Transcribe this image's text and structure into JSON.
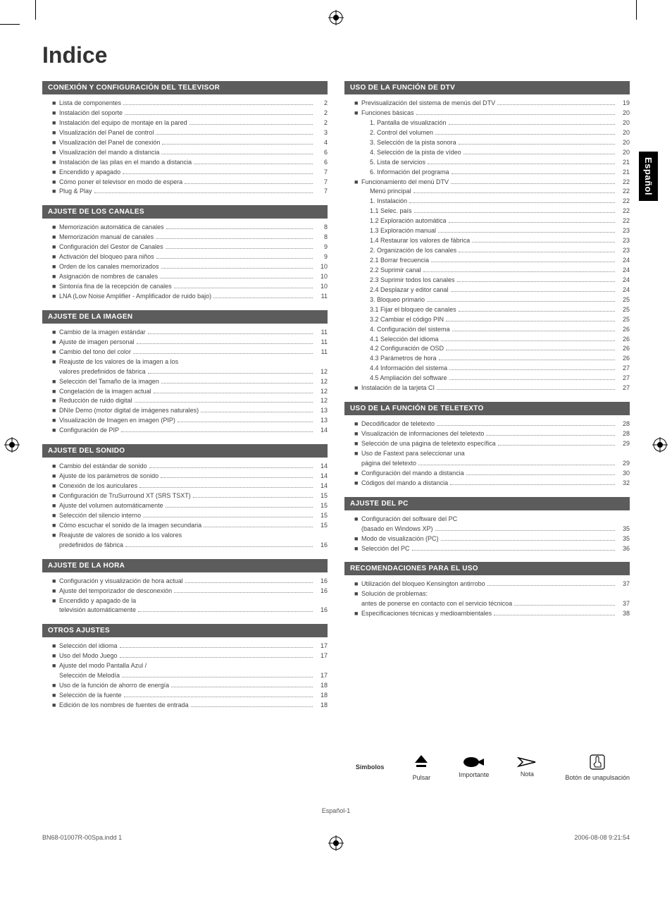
{
  "title": "Indice",
  "side_tab": "Español",
  "colors": {
    "section_header_bg": "#5c5c5c",
    "section_header_fg": "#ffffff",
    "side_tab_bg": "#000000",
    "side_tab_fg": "#ffffff",
    "text": "#333333",
    "dots": "#888888"
  },
  "left_sections": [
    {
      "header": "CONEXIÓN Y CONFIGURACIÓN DEL TELEVISOR",
      "items": [
        {
          "bullet": true,
          "label": "Lista de componentes",
          "page": "2"
        },
        {
          "bullet": true,
          "label": "Instalación del soporte",
          "page": "2"
        },
        {
          "bullet": true,
          "label": "Instalación del equipo de montaje en la pared",
          "page": "2"
        },
        {
          "bullet": true,
          "label": "Visualización del Panel de control",
          "page": "3"
        },
        {
          "bullet": true,
          "label": "Visualización del Panel de conexión",
          "page": "4"
        },
        {
          "bullet": true,
          "label": "Visualización del mando a distancia",
          "page": "6"
        },
        {
          "bullet": true,
          "label": "Instalación de las pilas en el mando a distancia",
          "page": "6"
        },
        {
          "bullet": true,
          "label": "Encendido y apagado",
          "page": "7"
        },
        {
          "bullet": true,
          "label": "Cómo poner el televisor en modo de espera",
          "page": "7"
        },
        {
          "bullet": true,
          "label": "Plug & Play",
          "page": "7"
        }
      ]
    },
    {
      "header": "AJUSTE DE LOS CANALES",
      "items": [
        {
          "bullet": true,
          "label": "Memorización automática de canales",
          "page": "8"
        },
        {
          "bullet": true,
          "label": "Memorización manual de canales",
          "page": "8"
        },
        {
          "bullet": true,
          "label": "Configuración del Gestor de Canales",
          "page": "9"
        },
        {
          "bullet": true,
          "label": "Activación del bloqueo para niños",
          "page": "9"
        },
        {
          "bullet": true,
          "label": "Orden de los canales memorizados",
          "page": "10"
        },
        {
          "bullet": true,
          "label": "Asignación de nombres de canales",
          "page": "10"
        },
        {
          "bullet": true,
          "label": "Sintonía fina de la recepción de canales",
          "page": "10"
        },
        {
          "bullet": true,
          "label": "LNA (Low Noise Amplifier - Amplificador de ruido bajo)",
          "page": "11"
        }
      ]
    },
    {
      "header": "AJUSTE DE LA IMAGEN",
      "items": [
        {
          "bullet": true,
          "label": "Cambio de la imagen estándar",
          "page": "11"
        },
        {
          "bullet": true,
          "label": "Ajuste de imagen personal",
          "page": "11"
        },
        {
          "bullet": true,
          "label": "Cambio del tono del color",
          "page": "11"
        },
        {
          "bullet": true,
          "label": "Reajuste de los valores de la imagen a los",
          "no_page": true
        },
        {
          "bullet": false,
          "label": "valores predefinidos de fábrica",
          "page": "12"
        },
        {
          "bullet": true,
          "label": "Selección del Tamaño de la imagen",
          "page": "12"
        },
        {
          "bullet": true,
          "label": "Congelación de la imagen actual",
          "page": "12"
        },
        {
          "bullet": true,
          "label": "Reducción de ruido digital",
          "page": "12"
        },
        {
          "bullet": true,
          "label": "DNIe Demo (motor digital de imágenes naturales)",
          "page": "13"
        },
        {
          "bullet": true,
          "label": "Visualización de Imagen en imagen (PIP)",
          "page": "13"
        },
        {
          "bullet": true,
          "label": "Configuración de PIP",
          "page": "14"
        }
      ]
    },
    {
      "header": "AJUSTE DEL SONIDO",
      "items": [
        {
          "bullet": true,
          "label": "Cambio del estándar de sonido",
          "page": "14"
        },
        {
          "bullet": true,
          "label": "Ajuste de los parámetros de sonido",
          "page": "14"
        },
        {
          "bullet": true,
          "label": "Conexión de los auriculares",
          "page": "14"
        },
        {
          "bullet": true,
          "label": "Configuración de TruSurround XT (SRS TSXT)",
          "page": "15"
        },
        {
          "bullet": true,
          "label": "Ajuste del volumen automáticamente",
          "page": "15"
        },
        {
          "bullet": true,
          "label": "Selección del silencio interno",
          "page": "15"
        },
        {
          "bullet": true,
          "label": "Cómo escuchar el sonido de la imagen secundaria",
          "page": "15"
        },
        {
          "bullet": true,
          "label": "Reajuste de valores de sonido a los valores",
          "no_page": true
        },
        {
          "bullet": false,
          "label": "predefinidos de fábrica",
          "page": "16"
        }
      ]
    },
    {
      "header": "AJUSTE DE LA HORA",
      "items": [
        {
          "bullet": true,
          "label": "Configuración y visualización de hora actual",
          "page": "16"
        },
        {
          "bullet": true,
          "label": "Ajuste del temporizador de desconexión",
          "page": "16"
        },
        {
          "bullet": true,
          "label": "Encendido y apagado de la",
          "no_page": true
        },
        {
          "bullet": false,
          "label": "televisión automáticamente",
          "page": "16"
        }
      ]
    },
    {
      "header": "OTROS AJUSTES",
      "items": [
        {
          "bullet": true,
          "label": "Selección del idioma",
          "page": "17"
        },
        {
          "bullet": true,
          "label": "Uso del Modo Juego",
          "page": "17"
        },
        {
          "bullet": true,
          "label": "Ajuste del modo Pantalla Azul /",
          "no_page": true
        },
        {
          "bullet": false,
          "label": "Selección de Melodía",
          "page": "17"
        },
        {
          "bullet": true,
          "label": "Uso de la función de ahorro de energía",
          "page": "18"
        },
        {
          "bullet": true,
          "label": "Selección de la fuente",
          "page": "18"
        },
        {
          "bullet": true,
          "label": "Edición de los nombres de fuentes de entrada",
          "page": "18"
        }
      ]
    }
  ],
  "right_sections": [
    {
      "header": "USO DE LA FUNCIÓN DE DTV",
      "items": [
        {
          "bullet": true,
          "label": "Previsualización del sistema de menús del DTV",
          "page": "19"
        },
        {
          "bullet": true,
          "label": "Funciones básicas",
          "page": "20"
        },
        {
          "bullet": false,
          "nested": true,
          "label": "1. Pantalla de visualización",
          "page": "20"
        },
        {
          "bullet": false,
          "nested": true,
          "label": "2. Control del volumen",
          "page": "20"
        },
        {
          "bullet": false,
          "nested": true,
          "label": "3. Selección de la pista sonora",
          "page": "20"
        },
        {
          "bullet": false,
          "nested": true,
          "label": "4. Selección de la pista de vídeo",
          "page": "20"
        },
        {
          "bullet": false,
          "nested": true,
          "label": "5.  Lista de servicios",
          "page": "21"
        },
        {
          "bullet": false,
          "nested": true,
          "label": "6.  Información del programa",
          "page": "21"
        },
        {
          "bullet": true,
          "label": "Funcionamiento del menú DTV",
          "page": "22"
        },
        {
          "bullet": false,
          "nested": true,
          "label": "Menú principal",
          "page": "22"
        },
        {
          "bullet": false,
          "nested": true,
          "label": "1. Instalación",
          "page": "22"
        },
        {
          "bullet": false,
          "nested": true,
          "label": "1.1 Selec. país",
          "page": "22"
        },
        {
          "bullet": false,
          "nested": true,
          "label": "1.2 Exploración automática",
          "page": "22"
        },
        {
          "bullet": false,
          "nested": true,
          "label": "1.3 Exploración manual",
          "page": "23"
        },
        {
          "bullet": false,
          "nested": true,
          "label": "1.4 Restaurar los valores de fábrica",
          "page": "23"
        },
        {
          "bullet": false,
          "nested": true,
          "label": "2. Organización de los canales",
          "page": "23"
        },
        {
          "bullet": false,
          "nested": true,
          "label": "2.1 Borrar frecuencia",
          "page": "24"
        },
        {
          "bullet": false,
          "nested": true,
          "label": "2.2 Suprimir canal",
          "page": "24"
        },
        {
          "bullet": false,
          "nested": true,
          "label": "2.3 Suprimir todos los canales",
          "page": "24"
        },
        {
          "bullet": false,
          "nested": true,
          "label": "2.4 Desplazar y editor canal",
          "page": "24"
        },
        {
          "bullet": false,
          "nested": true,
          "label": "3. Bloqueo primario",
          "page": "25"
        },
        {
          "bullet": false,
          "nested": true,
          "label": "3.1 Fijar el bloqueo de canales",
          "page": "25"
        },
        {
          "bullet": false,
          "nested": true,
          "label": "3.2 Cambiar el código PIN",
          "page": "25"
        },
        {
          "bullet": false,
          "nested": true,
          "label": "4. Configuración del sistema",
          "page": "26"
        },
        {
          "bullet": false,
          "nested": true,
          "label": "4.1 Selección del idioma",
          "page": "26"
        },
        {
          "bullet": false,
          "nested": true,
          "label": "4.2 Configuración de OSD",
          "page": "26"
        },
        {
          "bullet": false,
          "nested": true,
          "label": "4.3 Parámetros de hora",
          "page": "26"
        },
        {
          "bullet": false,
          "nested": true,
          "label": "4.4 Información del sistema",
          "page": "27"
        },
        {
          "bullet": false,
          "nested": true,
          "label": "4.5 Ampliación del software",
          "page": "27"
        },
        {
          "bullet": true,
          "label": "Instalación de la tarjeta CI",
          "page": "27"
        }
      ]
    },
    {
      "header": "USO DE LA FUNCIÓN DE TELETEXTO",
      "items": [
        {
          "bullet": true,
          "label": "Decodificador de teletexto",
          "page": "28"
        },
        {
          "bullet": true,
          "label": "Visualización de informaciones del teletexto",
          "page": "28"
        },
        {
          "bullet": true,
          "label": "Selección de una página de teletexto específica",
          "page": "29"
        },
        {
          "bullet": true,
          "label": "Uso de Fastext para seleccionar una",
          "no_page": true
        },
        {
          "bullet": false,
          "label": "página del teletexto",
          "page": "29"
        },
        {
          "bullet": true,
          "label": "Configuración del mando a distancia",
          "page": "30"
        },
        {
          "bullet": true,
          "label": "Códigos del mando a distancia",
          "page": "32"
        }
      ]
    },
    {
      "header": "AJUSTE DEL PC",
      "items": [
        {
          "bullet": true,
          "label": "Configuración del software del PC",
          "no_page": true
        },
        {
          "bullet": false,
          "label": "(basado en Windows XP)",
          "page": "35"
        },
        {
          "bullet": true,
          "label": "Modo de visualización (PC)",
          "page": "35"
        },
        {
          "bullet": true,
          "label": "Selección del PC",
          "page": "36"
        }
      ]
    },
    {
      "header": "RECOMENDACIONES PARA EL USO",
      "items": [
        {
          "bullet": true,
          "label": "Utilización del bloqueo Kensington antirrobo",
          "page": "37"
        },
        {
          "bullet": true,
          "label": "Solución de problemas:",
          "no_page": true
        },
        {
          "bullet": false,
          "label": "antes de ponerse en contacto con el servicio técnicoa",
          "page": "37"
        },
        {
          "bullet": true,
          "label": "Especificaciones técnicas y medioambientales",
          "page": "38"
        }
      ]
    }
  ],
  "symbols": {
    "label": "Símbolos",
    "items": [
      {
        "name": "pulsar",
        "caption": "Pulsar"
      },
      {
        "name": "importante",
        "caption": "Importante"
      },
      {
        "name": "nota",
        "caption": "Nota"
      },
      {
        "name": "boton",
        "caption": "Botón de\nunapulsación"
      }
    ]
  },
  "page_footer": "Español-1",
  "print_footer": {
    "left": "BN68-01007R-00Spa.indd   1",
    "right": "2006-08-08     9:21:54"
  }
}
